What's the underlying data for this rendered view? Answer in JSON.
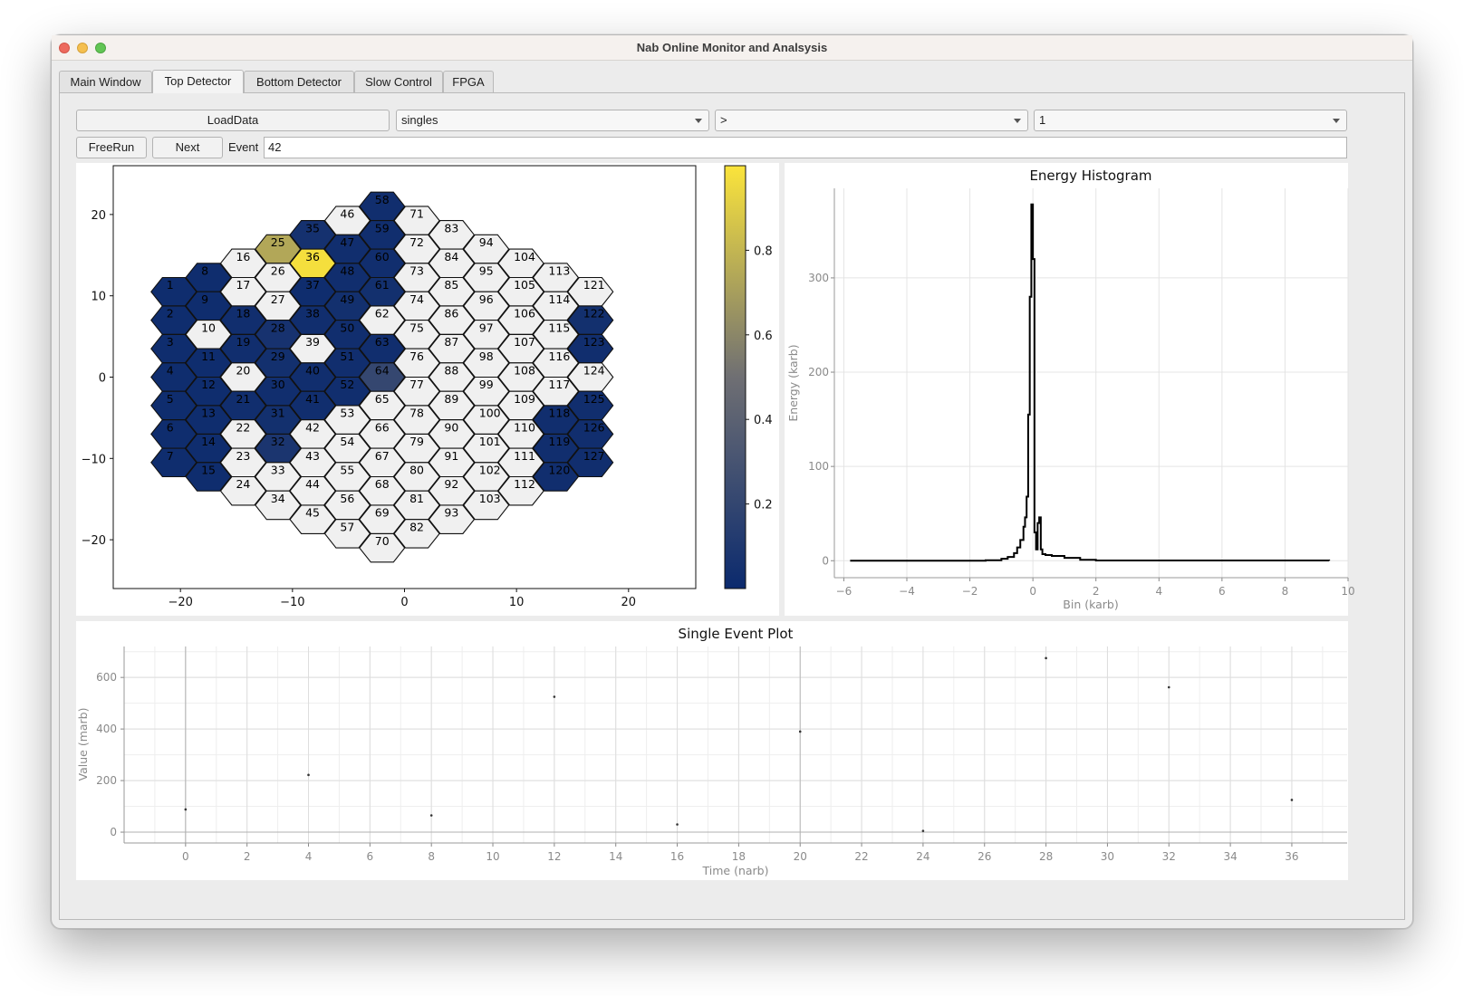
{
  "window": {
    "title": "Nab Online Monitor and Analsysis"
  },
  "tabs": [
    "Main Window",
    "Top Detector",
    "Bottom Detector",
    "Slow Control",
    "FPGA"
  ],
  "controls": {
    "load_button": "LoadData",
    "combo1": "singles",
    "combo2": ">",
    "combo3": "1",
    "freerun_button": "FreeRun",
    "next_button": "Next",
    "event_label": "Event",
    "event_value": "42"
  },
  "colors": {
    "low": "#0b2a6e",
    "mid": "#6f6f73",
    "high": "#fbe43b",
    "empty": "#f0f0f0"
  },
  "chart_data": [
    {
      "type": "heatmap",
      "xlim": [
        -26,
        26
      ],
      "ylim": [
        -26,
        26
      ],
      "xticks": [
        "-20",
        "-10",
        "0",
        "10",
        "20"
      ],
      "yticks": [
        "20",
        "10",
        "0",
        "-10",
        "-20"
      ],
      "colorbar_ticks": [
        "0.8",
        "0.6",
        "0.4",
        "0.2"
      ],
      "pixels_on": {
        "1": 0.02,
        "2": 0.02,
        "3": 0.02,
        "4": 0.02,
        "5": 0.02,
        "6": 0.02,
        "7": 0.02,
        "8": 0.02,
        "9": 0.02,
        "11": 0.02,
        "12": 0.02,
        "13": 0.02,
        "14": 0.02,
        "15": 0.02,
        "18": 0.03,
        "19": 0.03,
        "21": 0.03,
        "25": 0.74,
        "28": 0.06,
        "29": 0.04,
        "30": 0.03,
        "31": 0.04,
        "32": 0.08,
        "35": 0.05,
        "36": 0.98,
        "37": 0.02,
        "38": 0.03,
        "40": 0.03,
        "41": 0.03,
        "47": 0.03,
        "48": 0.03,
        "49": 0.04,
        "50": 0.03,
        "51": 0.03,
        "52": 0.03,
        "58": 0.03,
        "59": 0.03,
        "60": 0.03,
        "61": 0.04,
        "63": 0.03,
        "64": 0.21,
        "118": 0.03,
        "119": 0.03,
        "120": 0.03,
        "122": 0.04,
        "123": 0.03,
        "125": 0.03,
        "126": 0.03,
        "127": 0.03
      }
    },
    {
      "type": "line",
      "title": "Energy Histogram",
      "xlabel": "Bin (karb)",
      "ylabel": "Energy (karb)",
      "xticks": [
        "-6",
        "-4",
        "-2",
        "0",
        "2",
        "4",
        "6",
        "8",
        "10"
      ],
      "yticks": [
        "0",
        "100",
        "200",
        "300"
      ],
      "xlim": [
        -6.3,
        10.0
      ],
      "ylim": [
        -18,
        395
      ],
      "x": [
        -5.8,
        -2.0,
        -1.5,
        -1.0,
        -0.8,
        -0.6,
        -0.5,
        -0.4,
        -0.3,
        -0.25,
        -0.2,
        -0.15,
        -0.1,
        -0.05,
        0.0,
        0.05,
        0.1,
        0.15,
        0.2,
        0.25,
        0.3,
        0.4,
        0.6,
        1.0,
        1.5,
        2.0,
        9.4
      ],
      "y": [
        0,
        0,
        0.5,
        2,
        4,
        8,
        14,
        22,
        36,
        46,
        68,
        155,
        280,
        378,
        320,
        30,
        12,
        40,
        46,
        12,
        7,
        6,
        5,
        3,
        1,
        0.3,
        0
      ]
    },
    {
      "type": "scatter",
      "title": "Single Event Plot",
      "xlabel": "Time (narb)",
      "ylabel": "Value (marb)",
      "xticks": [
        "0",
        "2",
        "4",
        "6",
        "8",
        "10",
        "12",
        "14",
        "16",
        "18",
        "20",
        "22",
        "24",
        "26",
        "28",
        "30",
        "32",
        "34",
        "36"
      ],
      "yticks": [
        "0",
        "200",
        "400",
        "600"
      ],
      "xlim": [
        -2,
        37.8
      ],
      "ylim": [
        -42,
        720
      ],
      "x": [
        0,
        4,
        8,
        12,
        16,
        20,
        24,
        28,
        32,
        36
      ],
      "y": [
        88,
        222,
        65,
        525,
        30,
        390,
        5,
        675,
        562,
        125
      ]
    }
  ]
}
